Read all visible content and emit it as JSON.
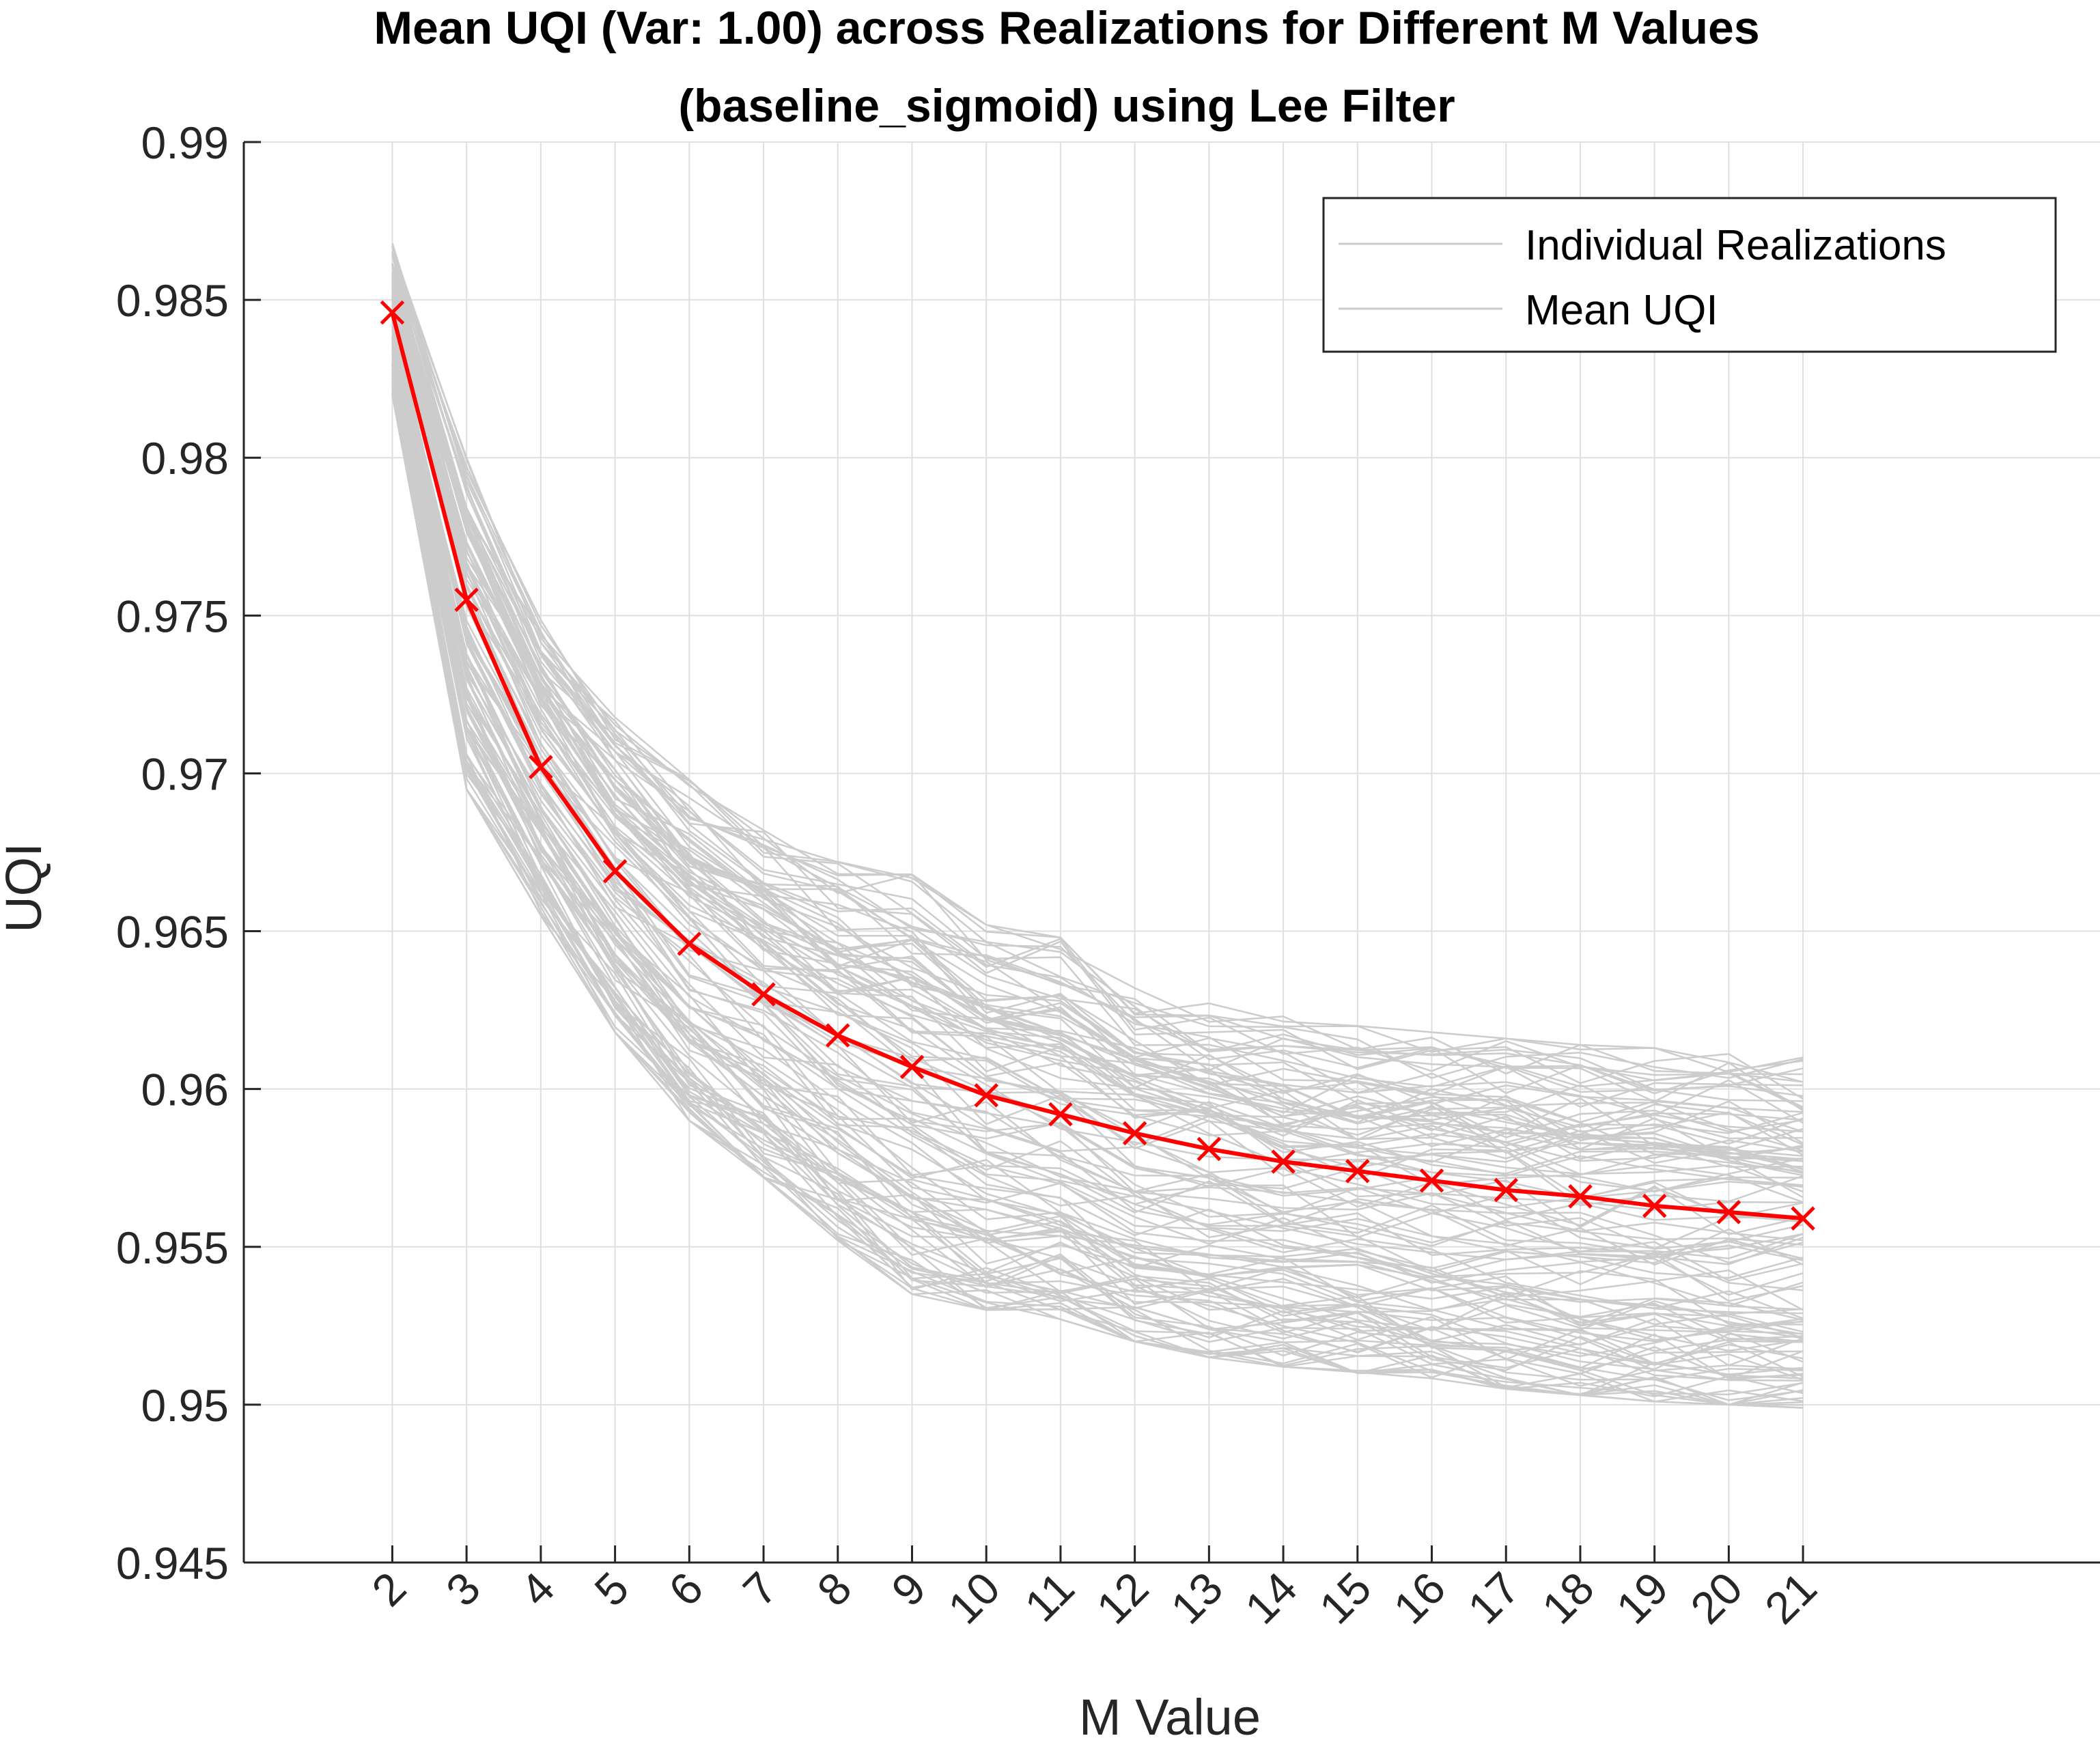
{
  "chart_data": {
    "type": "line",
    "title": [
      "Mean UQI (Var: 1.00) across Realizations for Different M Values",
      "(baseline_sigmoid) using Lee Filter"
    ],
    "xlabel": "M Value",
    "ylabel": "UQI",
    "x": [
      2,
      3,
      4,
      5,
      6,
      7,
      8,
      9,
      10,
      11,
      12,
      13,
      14,
      15,
      16,
      17,
      18,
      19,
      20,
      21
    ],
    "xlim": [
      0,
      25
    ],
    "ylim": [
      0.945,
      0.99
    ],
    "yticks": [
      0.945,
      0.95,
      0.955,
      0.96,
      0.965,
      0.97,
      0.975,
      0.98,
      0.985,
      0.99
    ],
    "grid": true,
    "legend": {
      "location": "top-right",
      "entries": [
        "Individual Realizations",
        "Mean UQI"
      ]
    },
    "series": [
      {
        "name": "Mean UQI",
        "color": "#ff0000",
        "marker": "x",
        "values": [
          0.9846,
          0.9755,
          0.9702,
          0.9669,
          0.9646,
          0.963,
          0.9617,
          0.9607,
          0.9598,
          0.9592,
          0.9586,
          0.9581,
          0.9577,
          0.9574,
          0.9571,
          0.9568,
          0.9566,
          0.9563,
          0.9561,
          0.9559
        ]
      },
      {
        "name": "Individual Realizations",
        "color": "#cccccc",
        "count": 120,
        "envelope_low": [
          0.982,
          0.9695,
          0.9655,
          0.9618,
          0.959,
          0.9572,
          0.9552,
          0.9535,
          0.953,
          0.9527,
          0.952,
          0.9515,
          0.9512,
          0.951,
          0.9508,
          0.9505,
          0.9503,
          0.9501,
          0.95,
          0.9499
        ],
        "envelope_high": [
          0.9868,
          0.98,
          0.975,
          0.972,
          0.9698,
          0.9682,
          0.9672,
          0.9668,
          0.9652,
          0.9648,
          0.9632,
          0.9628,
          0.9623,
          0.962,
          0.9618,
          0.9616,
          0.9614,
          0.9613,
          0.9612,
          0.961
        ]
      }
    ]
  }
}
